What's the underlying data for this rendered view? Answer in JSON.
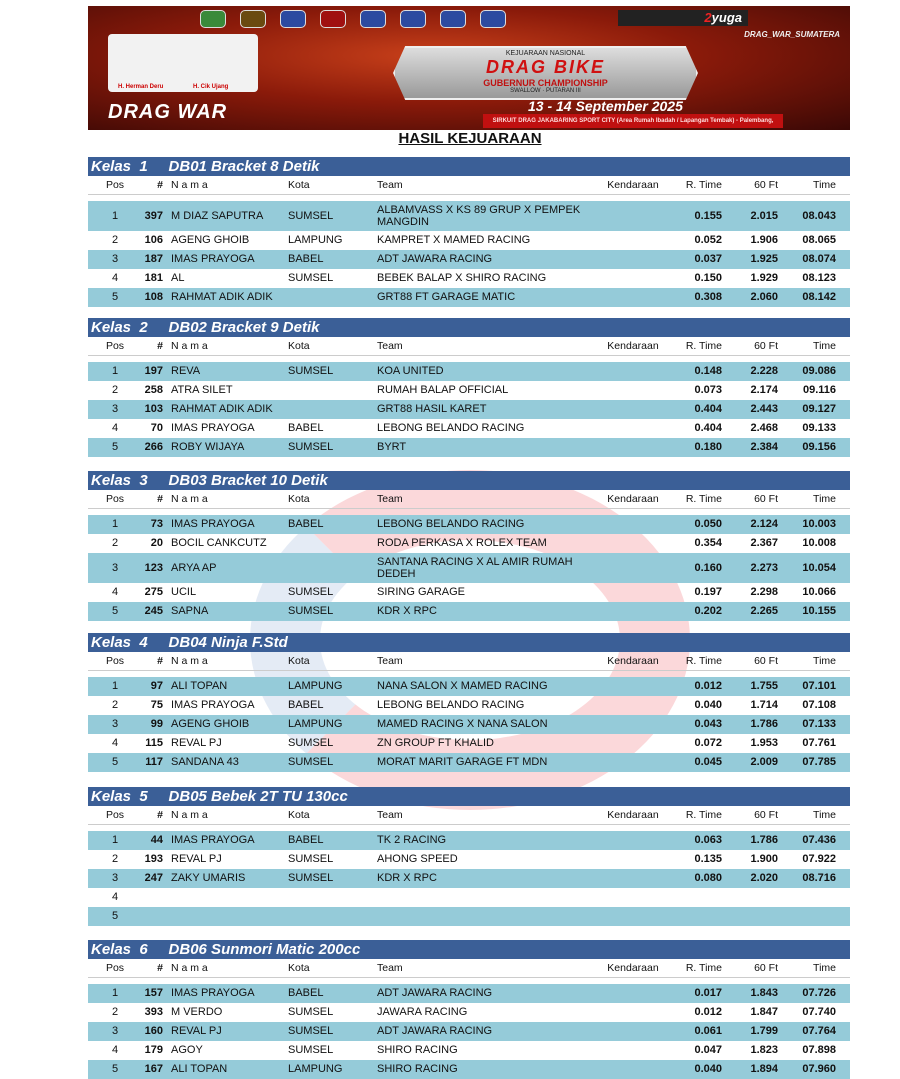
{
  "banner": {
    "brand": "yuga",
    "brand_prefix": "2",
    "instagram": "DRAG_WAR_SUMATERA",
    "event_sub": "KEJUARAAN NASIONAL",
    "event": "DRAG BIKE",
    "championship": "GUBERNUR CHAMPIONSHIP",
    "sponsor": "SWALLOW",
    "series": "PUTARAN III",
    "date": "13 - 14 September 2025",
    "venue": "SIRKUIT DRAG JAKABARING SPORT CITY (Area Rumah Ibadah / Lapangan Tembak) - Palembang, Sumatera Selatan",
    "person1": "H. Herman Deru",
    "person2": "H. Cik Ujang",
    "logo_text": "DRAG WAR"
  },
  "title": "HASIL KEJUARAAN",
  "columns": {
    "pos": "Pos",
    "num": "#",
    "nama": "N a m a",
    "kota": "Kota",
    "team": "Team",
    "kend": "Kendaraan",
    "rt": "R. Time",
    "ft": "60 Ft",
    "tm": "Time"
  },
  "classes": [
    {
      "label": "Kelas  1     DB01 Bracket 8 Detik",
      "rows": [
        [
          "1",
          "397",
          "M DIAZ SAPUTRA",
          "SUMSEL",
          "ALBAMVASS X KS 89 GRUP X PEMPEK MANGDIN",
          "",
          "0.155",
          "2.015",
          "08.043"
        ],
        [
          "2",
          "106",
          "AGENG GHOIB",
          "LAMPUNG",
          "KAMPRET X MAMED RACING",
          "",
          "0.052",
          "1.906",
          "08.065"
        ],
        [
          "3",
          "187",
          "IMAS PRAYOGA",
          "BABEL",
          "ADT JAWARA RACING",
          "",
          "0.037",
          "1.925",
          "08.074"
        ],
        [
          "4",
          "181",
          "AL",
          "SUMSEL",
          "BEBEK BALAP X SHIRO RACING",
          "",
          "0.150",
          "1.929",
          "08.123"
        ],
        [
          "5",
          "108",
          "RAHMAT ADIK ADIK",
          "",
          "GRT88 FT GARAGE MATIC",
          "",
          "0.308",
          "2.060",
          "08.142"
        ]
      ]
    },
    {
      "label": "Kelas  2     DB02 Bracket 9 Detik",
      "rows": [
        [
          "1",
          "197",
          "REVA",
          "SUMSEL",
          "KOA UNITED",
          "",
          "0.148",
          "2.228",
          "09.086"
        ],
        [
          "2",
          "258",
          "ATRA SILET",
          "",
          "RUMAH BALAP OFFICIAL",
          "",
          "0.073",
          "2.174",
          "09.116"
        ],
        [
          "3",
          "103",
          "RAHMAT ADIK ADIK",
          "",
          "GRT88 HASIL KARET",
          "",
          "0.404",
          "2.443",
          "09.127"
        ],
        [
          "4",
          "70",
          "IMAS PRAYOGA",
          "BABEL",
          "LEBONG BELANDO RACING",
          "",
          "0.404",
          "2.468",
          "09.133"
        ],
        [
          "5",
          "266",
          "ROBY WIJAYA",
          "SUMSEL",
          "BYRT",
          "",
          "0.180",
          "2.384",
          "09.156"
        ]
      ]
    },
    {
      "label": "Kelas  3     DB03 Bracket 10 Detik",
      "rows": [
        [
          "1",
          "73",
          "IMAS PRAYOGA",
          "BABEL",
          "LEBONG BELANDO RACING",
          "",
          "0.050",
          "2.124",
          "10.003"
        ],
        [
          "2",
          "20",
          "BOCIL CANKCUTZ",
          "",
          "RODA PERKASA X ROLEX TEAM",
          "",
          "0.354",
          "2.367",
          "10.008"
        ],
        [
          "3",
          "123",
          "ARYA AP",
          "",
          "SANTANA RACING X AL AMIR RUMAH DEDEH",
          "",
          "0.160",
          "2.273",
          "10.054"
        ],
        [
          "4",
          "275",
          "UCIL",
          "SUMSEL",
          "SIRING GARAGE",
          "",
          "0.197",
          "2.298",
          "10.066"
        ],
        [
          "5",
          "245",
          "SAPNA",
          "SUMSEL",
          "KDR X RPC",
          "",
          "0.202",
          "2.265",
          "10.155"
        ]
      ]
    },
    {
      "label": "Kelas  4     DB04 Ninja F.Std",
      "rows": [
        [
          "1",
          "97",
          "ALI TOPAN",
          "LAMPUNG",
          "NANA SALON X MAMED RACING",
          "",
          "0.012",
          "1.755",
          "07.101"
        ],
        [
          "2",
          "75",
          "IMAS PRAYOGA",
          "BABEL",
          "LEBONG BELANDO RACING",
          "",
          "0.040",
          "1.714",
          "07.108"
        ],
        [
          "3",
          "99",
          "AGENG GHOIB",
          "LAMPUNG",
          "MAMED RACING X NANA SALON",
          "",
          "0.043",
          "1.786",
          "07.133"
        ],
        [
          "4",
          "115",
          "REVAL PJ",
          "SUMSEL",
          "ZN GROUP FT KHALID",
          "",
          "0.072",
          "1.953",
          "07.761"
        ],
        [
          "5",
          "117",
          "SANDANA 43",
          "SUMSEL",
          "MORAT MARIT GARAGE FT MDN",
          "",
          "0.045",
          "2.009",
          "07.785"
        ]
      ]
    },
    {
      "label": "Kelas  5     DB05 Bebek 2T TU 130cc",
      "rows": [
        [
          "1",
          "44",
          "IMAS PRAYOGA",
          "BABEL",
          "TK 2 RACING",
          "",
          "0.063",
          "1.786",
          "07.436"
        ],
        [
          "2",
          "193",
          "REVAL PJ",
          "SUMSEL",
          "AHONG SPEED",
          "",
          "0.135",
          "1.900",
          "07.922"
        ],
        [
          "3",
          "247",
          "ZAKY UMARIS",
          "SUMSEL",
          "KDR X RPC",
          "",
          "0.080",
          "2.020",
          "08.716"
        ],
        [
          "4",
          "",
          "",
          "",
          "",
          "",
          "",
          "",
          ""
        ],
        [
          "5",
          "",
          "",
          "",
          "",
          "",
          "",
          "",
          ""
        ]
      ]
    },
    {
      "label": "Kelas  6     DB06 Sunmori Matic 200cc",
      "rows": [
        [
          "1",
          "157",
          "IMAS PRAYOGA",
          "BABEL",
          "ADT JAWARA RACING",
          "",
          "0.017",
          "1.843",
          "07.726"
        ],
        [
          "2",
          "393",
          "M VERDO",
          "SUMSEL",
          "JAWARA RACING",
          "",
          "0.012",
          "1.847",
          "07.740"
        ],
        [
          "3",
          "160",
          "REVAL PJ",
          "SUMSEL",
          "ADT JAWARA RACING",
          "",
          "0.061",
          "1.799",
          "07.764"
        ],
        [
          "4",
          "179",
          "AGOY",
          "SUMSEL",
          "SHIRO RACING",
          "",
          "0.047",
          "1.823",
          "07.898"
        ],
        [
          "5",
          "167",
          "ALI TOPAN",
          "LAMPUNG",
          "SHIRO RACING",
          "",
          "0.040",
          "1.894",
          "07.960"
        ]
      ]
    }
  ]
}
